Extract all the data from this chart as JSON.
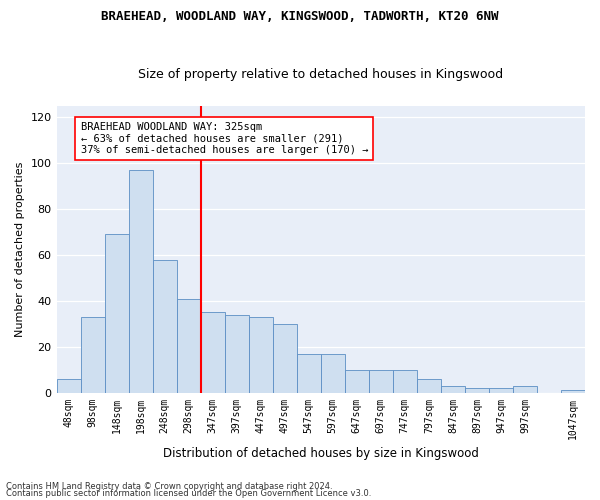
{
  "title": "BRAEHEAD, WOODLAND WAY, KINGSWOOD, TADWORTH, KT20 6NW",
  "subtitle": "Size of property relative to detached houses in Kingswood",
  "xlabel": "Distribution of detached houses by size in Kingswood",
  "ylabel": "Number of detached properties",
  "bar_values": [
    6,
    33,
    69,
    97,
    58,
    41,
    35,
    34,
    33,
    30,
    17,
    17,
    10,
    10,
    10,
    6,
    3,
    2,
    2,
    3,
    0,
    1
  ],
  "bin_labels": [
    "48sqm",
    "98sqm",
    "148sqm",
    "198sqm",
    "248sqm",
    "298sqm",
    "347sqm",
    "397sqm",
    "447sqm",
    "497sqm",
    "547sqm",
    "597sqm",
    "647sqm",
    "697sqm",
    "747sqm",
    "797sqm",
    "847sqm",
    "897sqm",
    "947sqm",
    "997sqm",
    "",
    "1047sqm"
  ],
  "bar_color": "#cfdff0",
  "bar_edge_color": "#5b8ec4",
  "reference_line_x": 5.5,
  "annotation_line1": "BRAEHEAD WOODLAND WAY: 325sqm",
  "annotation_line2": "← 63% of detached houses are smaller (291)",
  "annotation_line3": "37% of semi-detached houses are larger (170) →",
  "ylim": [
    0,
    125
  ],
  "yticks": [
    0,
    20,
    40,
    60,
    80,
    100,
    120
  ],
  "bg_color": "#e8eef8",
  "footer1": "Contains HM Land Registry data © Crown copyright and database right 2024.",
  "footer2": "Contains public sector information licensed under the Open Government Licence v3.0."
}
